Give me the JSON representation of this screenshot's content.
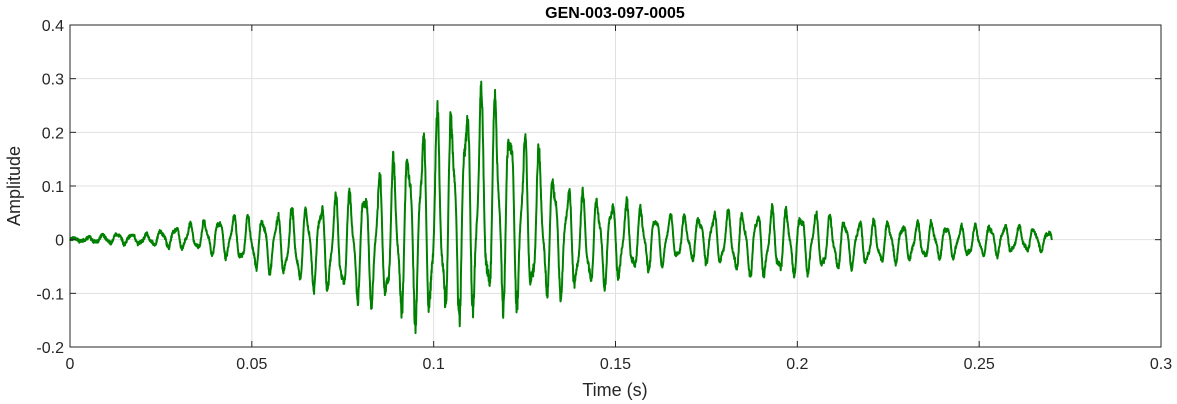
{
  "chart_data": {
    "type": "line",
    "title": "GEN-003-097-0005",
    "xlabel": "Time (s)",
    "ylabel": "Amplitude",
    "xlim": [
      0,
      0.3
    ],
    "ylim": [
      -0.2,
      0.4
    ],
    "xticks": [
      0,
      0.05,
      0.1,
      0.15,
      0.2,
      0.25,
      0.3
    ],
    "xtick_labels": [
      "0",
      "0.05",
      "0.1",
      "0.15",
      "0.2",
      "0.25",
      "0.3"
    ],
    "yticks": [
      -0.2,
      -0.1,
      0,
      0.1,
      0.2,
      0.3,
      0.4
    ],
    "ytick_labels": [
      "-0.2",
      "-0.1",
      "0",
      "0.1",
      "0.2",
      "0.3",
      "0.4"
    ],
    "grid": true,
    "line_color": "#008000",
    "series": [
      {
        "x": [
          0,
          0.005,
          0.01,
          0.015,
          0.02,
          0.025,
          0.03,
          0.035,
          0.04,
          0.045,
          0.05,
          0.055,
          0.06,
          0.065,
          0.07,
          0.075,
          0.08,
          0.085,
          0.09,
          0.095,
          0.1,
          0.105,
          0.11,
          0.115,
          0.12,
          0.125,
          0.13,
          0.135,
          0.14,
          0.145,
          0.15,
          0.155,
          0.16,
          0.165,
          0.17,
          0.175,
          0.18,
          0.185,
          0.19,
          0.195,
          0.2,
          0.205,
          0.21,
          0.215,
          0.22,
          0.225,
          0.23,
          0.235,
          0.24,
          0.245,
          0.25,
          0.255,
          0.26,
          0.265,
          0.27
        ],
        "envelope_upper": [
          0.003,
          0.005,
          0.012,
          0.015,
          0.01,
          0.02,
          0.03,
          0.035,
          0.045,
          0.05,
          0.05,
          0.055,
          0.065,
          0.075,
          0.09,
          0.1,
          0.12,
          0.14,
          0.18,
          0.22,
          0.26,
          0.28,
          0.3,
          0.31,
          0.28,
          0.22,
          0.18,
          0.13,
          0.1,
          0.095,
          0.09,
          0.075,
          0.06,
          0.055,
          0.05,
          0.055,
          0.065,
          0.06,
          0.065,
          0.07,
          0.065,
          0.06,
          0.05,
          0.045,
          0.04,
          0.04,
          0.035,
          0.04,
          0.035,
          0.03,
          0.03,
          0.035,
          0.03,
          0.025,
          0.02
        ],
        "envelope_lower": [
          -0.003,
          -0.005,
          -0.008,
          -0.01,
          -0.01,
          -0.015,
          -0.02,
          -0.025,
          -0.035,
          -0.045,
          -0.06,
          -0.07,
          -0.08,
          -0.1,
          -0.11,
          -0.12,
          -0.13,
          -0.15,
          -0.16,
          -0.18,
          -0.19,
          -0.18,
          -0.175,
          -0.17,
          -0.165,
          -0.15,
          -0.13,
          -0.12,
          -0.11,
          -0.1,
          -0.09,
          -0.075,
          -0.065,
          -0.05,
          -0.045,
          -0.05,
          -0.06,
          -0.075,
          -0.08,
          -0.08,
          -0.075,
          -0.07,
          -0.065,
          -0.06,
          -0.055,
          -0.05,
          -0.045,
          -0.045,
          -0.04,
          -0.04,
          -0.035,
          -0.035,
          -0.03,
          -0.025,
          -0.025
        ]
      }
    ]
  }
}
